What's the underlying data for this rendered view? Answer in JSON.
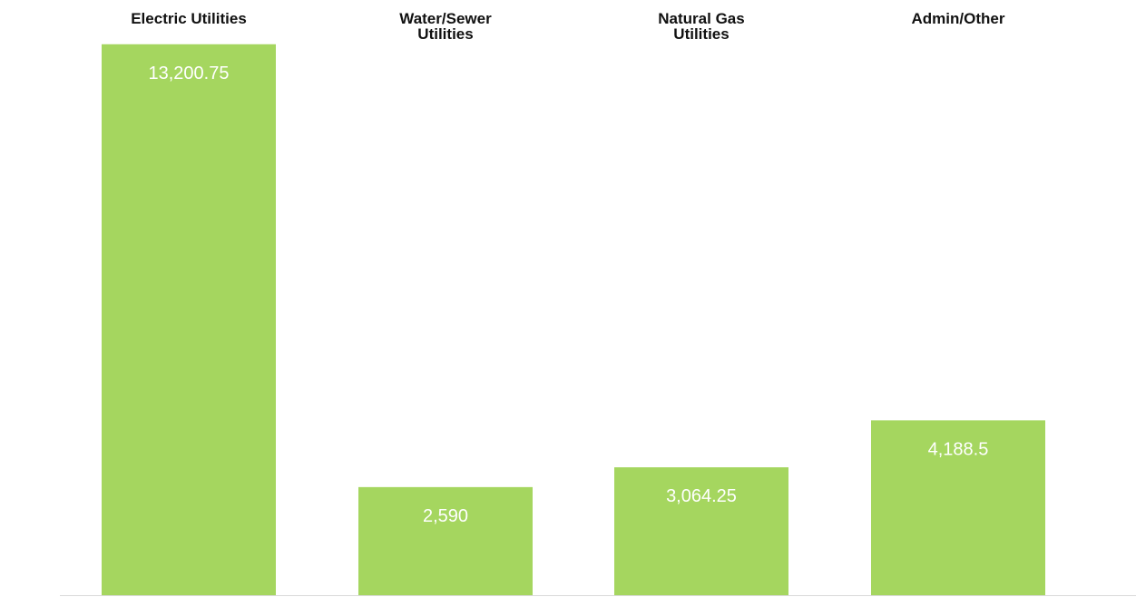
{
  "chart_data": {
    "type": "bar",
    "categories": [
      [
        "Electric Utilities"
      ],
      [
        "Water/Sewer",
        "Utilities"
      ],
      [
        "Natural Gas",
        "Utilities"
      ],
      [
        "Admin/Other"
      ]
    ],
    "values": [
      13200.75,
      2590,
      3064.25,
      4188.5
    ],
    "value_labels": [
      "13,200.75",
      "2,590",
      "3,064.25",
      "4,188.5"
    ],
    "ylim": [
      0,
      14000
    ],
    "grid": false,
    "legend": "none",
    "category_axis_position": "top",
    "data_label_position": "inside-top",
    "colors": {
      "bar": "#a5d65f",
      "baseline": "#d9d9d9",
      "category_text": "#111111",
      "value_text": "#ffffff"
    }
  }
}
